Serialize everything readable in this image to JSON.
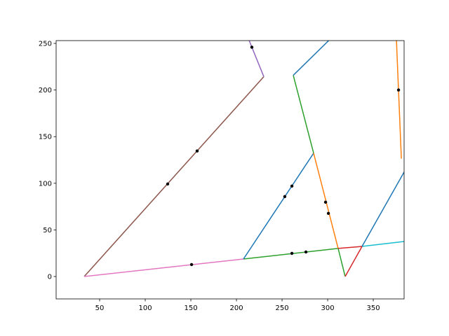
{
  "chart_data": {
    "type": "line",
    "title": "",
    "xlabel": "",
    "ylabel": "",
    "xlim": [
      2.3,
      383.8
    ],
    "ylim": [
      -24,
      253
    ],
    "xticks": [
      50,
      100,
      150,
      200,
      250,
      300,
      350
    ],
    "yticks": [
      0,
      50,
      100,
      150,
      200,
      250
    ],
    "grid": false,
    "series": [
      {
        "color": "#8c564b",
        "points": [
          [
            33.1,
            0
          ],
          [
            230,
            214.3
          ]
        ]
      },
      {
        "color": "#9467bd",
        "points": [
          [
            230,
            214.3
          ],
          [
            213.8,
            253.4
          ]
        ]
      },
      {
        "color": "#e377c2",
        "points": [
          [
            33.1,
            0
          ],
          [
            207.7,
            18.8
          ]
        ]
      },
      {
        "color": "#2ca02c",
        "points": [
          [
            207.7,
            18.8
          ],
          [
            311.5,
            30.1
          ]
        ]
      },
      {
        "color": "#1f77b4",
        "points": [
          [
            207.7,
            18.8
          ],
          [
            284.6,
            132.3
          ]
        ]
      },
      {
        "color": "#ff7f0e",
        "points": [
          [
            284.6,
            132.3
          ],
          [
            311.5,
            30.1
          ]
        ]
      },
      {
        "color": "#2ca02c",
        "points": [
          [
            311.5,
            30.1
          ],
          [
            319.2,
            0
          ]
        ]
      },
      {
        "color": "#d62728",
        "points": [
          [
            311.5,
            30.1
          ],
          [
            337.7,
            32.3
          ]
        ]
      },
      {
        "color": "#d62728",
        "points": [
          [
            319.2,
            0
          ],
          [
            337.7,
            32.3
          ]
        ]
      },
      {
        "color": "#17becf",
        "points": [
          [
            337.7,
            32.3
          ],
          [
            383.8,
            37.6
          ]
        ]
      },
      {
        "color": "#1f77b4",
        "points": [
          [
            337.7,
            32.3
          ],
          [
            383.8,
            112
          ]
        ]
      },
      {
        "color": "#2ca02c",
        "points": [
          [
            262.3,
            215.8
          ],
          [
            284.6,
            132.3
          ]
        ]
      },
      {
        "color": "#1f77b4",
        "points": [
          [
            262.3,
            215.8
          ],
          [
            301.5,
            253.4
          ]
        ]
      },
      {
        "color": "#ff7f0e",
        "points": [
          [
            375.4,
            253.4
          ],
          [
            380.8,
            126.3
          ]
        ]
      }
    ],
    "scatter": {
      "color": "#000000",
      "points": [
        [
          124.6,
          99.2
        ],
        [
          156.9,
          134.6
        ],
        [
          216.9,
          245.9
        ],
        [
          253,
          85.7
        ],
        [
          260.8,
          97
        ],
        [
          297.7,
          79.7
        ],
        [
          300.8,
          67.7
        ],
        [
          260.8,
          24.8
        ],
        [
          276.2,
          26.3
        ],
        [
          150.8,
          12.8
        ],
        [
          377.7,
          200
        ]
      ]
    }
  }
}
